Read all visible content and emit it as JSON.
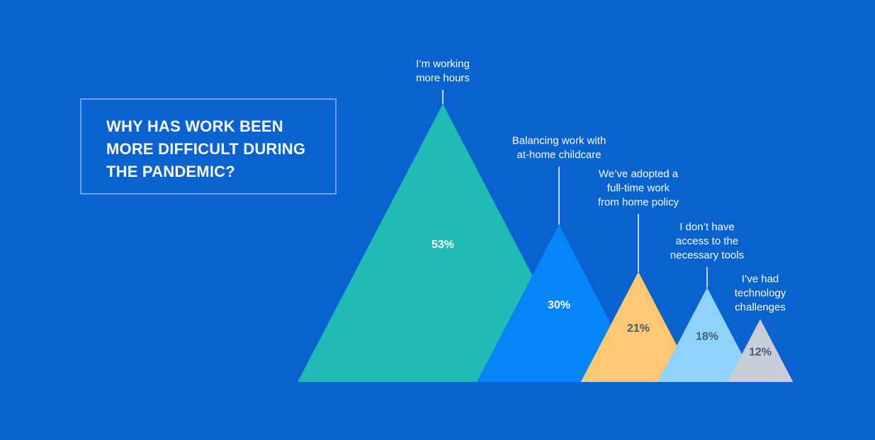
{
  "title": "WHY HAS WORK BEEN\nMORE DIFFICULT DURING\nTHE PANDEMIC?",
  "chart_data": {
    "type": "bar",
    "title": "WHY HAS WORK BEEN MORE DIFFICULT DURING THE PANDEMIC?",
    "categories": [
      "I'm working more hours",
      "Balancing work with at-home childcare",
      "We've adopted a full-time work from home policy",
      "I don't have access to the necessary tools",
      "I've had technology challenges"
    ],
    "category_lines": [
      [
        "I’m working",
        "more hours"
      ],
      [
        "Balancing work with",
        "at-home childcare"
      ],
      [
        "We’ve adopted a",
        "full-time work",
        "from home policy"
      ],
      [
        "I don’t have",
        "access to the",
        "necessary tools"
      ],
      [
        "I’ve had",
        "technology",
        "challenges"
      ]
    ],
    "values": [
      53,
      30,
      21,
      18,
      12
    ],
    "value_labels": [
      "53%",
      "30%",
      "21%",
      "18%",
      "12%"
    ],
    "unit": "%",
    "colors": [
      "#21bbb5",
      "#0585f7",
      "#fdc873",
      "#8fd3fc",
      "#c9cdd5"
    ],
    "label_colors": [
      "#ffffff",
      "#ffffff",
      "#4a5a78",
      "#4a5a78",
      "#4a5a78"
    ],
    "mark_shape": "triangle",
    "grid": false,
    "legend": "none"
  }
}
